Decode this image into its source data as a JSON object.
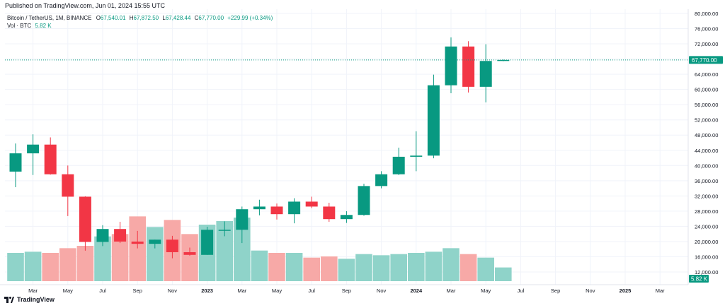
{
  "header": {
    "published": "Published on TradingView.com, Jun 01, 2024 15:55 UTC"
  },
  "legend": {
    "symbol": "Bitcoin / TetherUS, 1M, BINANCE",
    "o_label": "O",
    "o_value": "67,540.01",
    "h_label": "H",
    "h_value": "67,872.50",
    "l_label": "L",
    "l_value": "67,428.44",
    "c_label": "C",
    "c_value": "67,770.00",
    "change": "+229.99 (+0.34%)",
    "vol_label": "Vol · BTC",
    "vol_value": "5.82 K"
  },
  "footer": {
    "brand": "TradingView"
  },
  "colors": {
    "up": "#089981",
    "down": "#f23645",
    "up_vol": "#8fd3c9",
    "down_vol": "#f7a9a7",
    "last_price": "#089981"
  },
  "chart_data": {
    "type": "candlestick",
    "y_axis": {
      "min": 8000,
      "max": 80000,
      "ticks": [
        12000,
        16000,
        20000,
        24000,
        28000,
        32000,
        36000,
        40000,
        44000,
        48000,
        52000,
        56000,
        60000,
        64000,
        68000,
        72000,
        76000,
        80000
      ],
      "tick_labels": [
        "12,000.00",
        "16,000.00",
        "20,000.00",
        "24,000.00",
        "28,000.00",
        "32,000.00",
        "36,000.00",
        "40,000.00",
        "44,000.00",
        "48,000.00",
        "52,000.00",
        "56,000.00",
        "60,000.00",
        "64,000.00",
        "68,000.00",
        "72,000.00",
        "76,000.00",
        "80,000.00"
      ]
    },
    "x_axis_labels": [
      {
        "label": "Mar",
        "slot": 1
      },
      {
        "label": "May",
        "slot": 3
      },
      {
        "label": "Jul",
        "slot": 5
      },
      {
        "label": "Sep",
        "slot": 7
      },
      {
        "label": "Nov",
        "slot": 9
      },
      {
        "label": "2023",
        "slot": 11
      },
      {
        "label": "Mar",
        "slot": 13
      },
      {
        "label": "May",
        "slot": 15
      },
      {
        "label": "Jul",
        "slot": 17
      },
      {
        "label": "Sep",
        "slot": 19
      },
      {
        "label": "Nov",
        "slot": 21
      },
      {
        "label": "2024",
        "slot": 23
      },
      {
        "label": "Mar",
        "slot": 25
      },
      {
        "label": "May",
        "slot": 27
      },
      {
        "label": "Jul",
        "slot": 29
      },
      {
        "label": "Sep",
        "slot": 31
      },
      {
        "label": "Nov",
        "slot": 33
      },
      {
        "label": "2025",
        "slot": 35
      },
      {
        "label": "Mar",
        "slot": 37
      }
    ],
    "last_price": 67770,
    "last_price_label": "67,770.00",
    "volume_label": "5.82 K",
    "volume_max": 27000,
    "candles": [
      {
        "o": 38400,
        "h": 45800,
        "l": 34300,
        "c": 43200,
        "v": 12000
      },
      {
        "o": 43200,
        "h": 48200,
        "l": 37500,
        "c": 45500,
        "v": 12500
      },
      {
        "o": 45500,
        "h": 47400,
        "l": 37600,
        "c": 37700,
        "v": 12000
      },
      {
        "o": 37700,
        "h": 40000,
        "l": 26700,
        "c": 31800,
        "v": 14000
      },
      {
        "o": 31800,
        "h": 31900,
        "l": 17600,
        "c": 19900,
        "v": 15000
      },
      {
        "o": 19900,
        "h": 24300,
        "l": 18800,
        "c": 23300,
        "v": 19000
      },
      {
        "o": 23300,
        "h": 25200,
        "l": 19600,
        "c": 20000,
        "v": 20000
      },
      {
        "o": 20000,
        "h": 22800,
        "l": 18200,
        "c": 19400,
        "v": 27500
      },
      {
        "o": 19400,
        "h": 20500,
        "l": 18200,
        "c": 20500,
        "v": 23000
      },
      {
        "o": 20500,
        "h": 21500,
        "l": 15600,
        "c": 17200,
        "v": 26000
      },
      {
        "o": 17200,
        "h": 18400,
        "l": 16300,
        "c": 16500,
        "v": 20000
      },
      {
        "o": 16500,
        "h": 23900,
        "l": 16500,
        "c": 23100,
        "v": 24000
      },
      {
        "o": 23100,
        "h": 25300,
        "l": 21400,
        "c": 23100,
        "v": 25500
      },
      {
        "o": 23100,
        "h": 29200,
        "l": 19600,
        "c": 28500,
        "v": 27000
      },
      {
        "o": 28500,
        "h": 31000,
        "l": 26900,
        "c": 29200,
        "v": 13000
      },
      {
        "o": 29200,
        "h": 30000,
        "l": 25800,
        "c": 27200,
        "v": 12000
      },
      {
        "o": 27200,
        "h": 31400,
        "l": 24800,
        "c": 30500,
        "v": 12000
      },
      {
        "o": 30500,
        "h": 31800,
        "l": 28800,
        "c": 29200,
        "v": 10000
      },
      {
        "o": 29200,
        "h": 30200,
        "l": 25200,
        "c": 25900,
        "v": 10500
      },
      {
        "o": 25900,
        "h": 28000,
        "l": 24900,
        "c": 27000,
        "v": 9500
      },
      {
        "o": 27000,
        "h": 35200,
        "l": 26800,
        "c": 34600,
        "v": 11500
      },
      {
        "o": 34600,
        "h": 38500,
        "l": 34000,
        "c": 37700,
        "v": 11000
      },
      {
        "o": 37700,
        "h": 44700,
        "l": 37500,
        "c": 42300,
        "v": 11500
      },
      {
        "o": 42300,
        "h": 49000,
        "l": 38500,
        "c": 42600,
        "v": 12000
      },
      {
        "o": 42600,
        "h": 63900,
        "l": 41900,
        "c": 61100,
        "v": 12500
      },
      {
        "o": 61100,
        "h": 73700,
        "l": 59000,
        "c": 71300,
        "v": 14000
      },
      {
        "o": 71300,
        "h": 72700,
        "l": 59200,
        "c": 60700,
        "v": 11500
      },
      {
        "o": 60700,
        "h": 71900,
        "l": 56600,
        "c": 67500,
        "v": 10000
      },
      {
        "o": 67540,
        "h": 67870,
        "l": 67430,
        "c": 67770,
        "v": 5820
      }
    ]
  }
}
